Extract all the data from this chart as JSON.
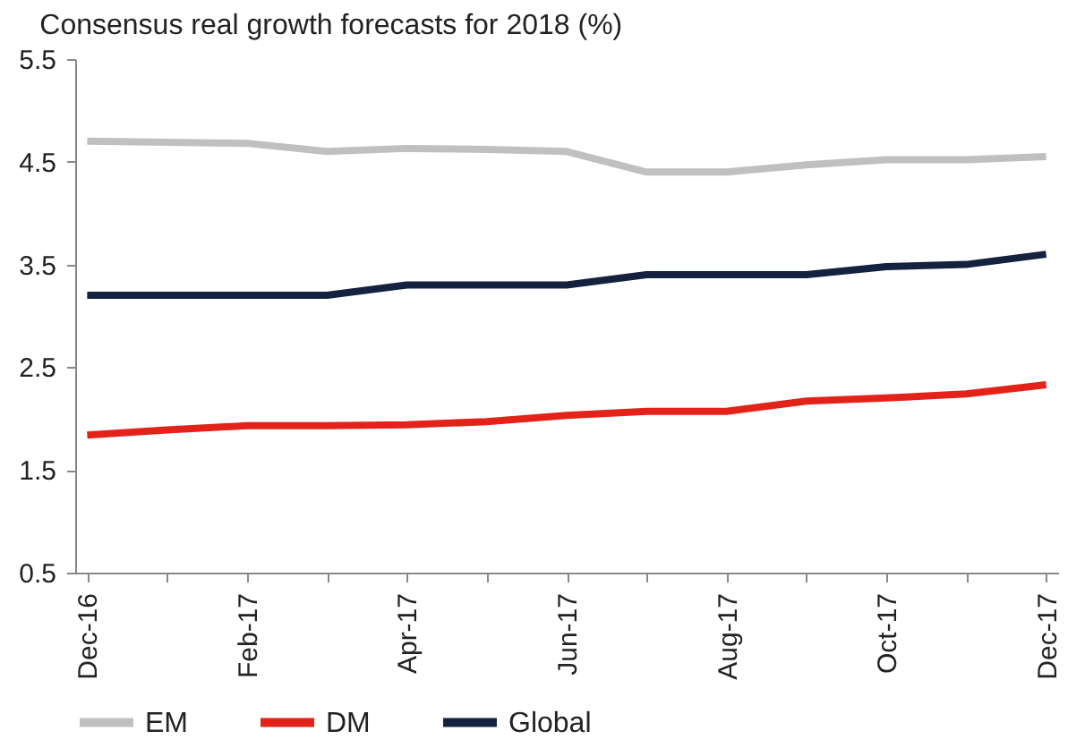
{
  "chart_data": {
    "type": "line",
    "title": "Consensus real growth forecasts for 2018 (%)",
    "categories": [
      "Dec-16",
      null,
      "Feb-17",
      null,
      "Apr-17",
      null,
      "Jun-17",
      null,
      "Aug-17",
      null,
      "Oct-17",
      null,
      "Dec-17"
    ],
    "series": [
      {
        "name": "EM",
        "color": "#c0c0c0",
        "values": [
          4.7,
          4.69,
          4.68,
          4.6,
          4.63,
          4.62,
          4.6,
          4.4,
          4.4,
          4.47,
          4.52,
          4.52,
          4.55
        ]
      },
      {
        "name": "DM",
        "color": "#e3231a",
        "values": [
          1.84,
          1.89,
          1.93,
          1.93,
          1.94,
          1.97,
          2.03,
          2.07,
          2.07,
          2.17,
          2.2,
          2.24,
          2.33
        ]
      },
      {
        "name": "Global",
        "color": "#14223f",
        "values": [
          3.2,
          3.2,
          3.2,
          3.2,
          3.3,
          3.3,
          3.3,
          3.4,
          3.4,
          3.4,
          3.48,
          3.5,
          3.6
        ]
      }
    ],
    "ylim": [
      0.5,
      5.5
    ],
    "yticks": [
      0.5,
      1.5,
      2.5,
      3.5,
      4.5,
      5.5
    ],
    "grid": false,
    "legend": "bottom",
    "marker": "none",
    "line_style": "solid"
  }
}
